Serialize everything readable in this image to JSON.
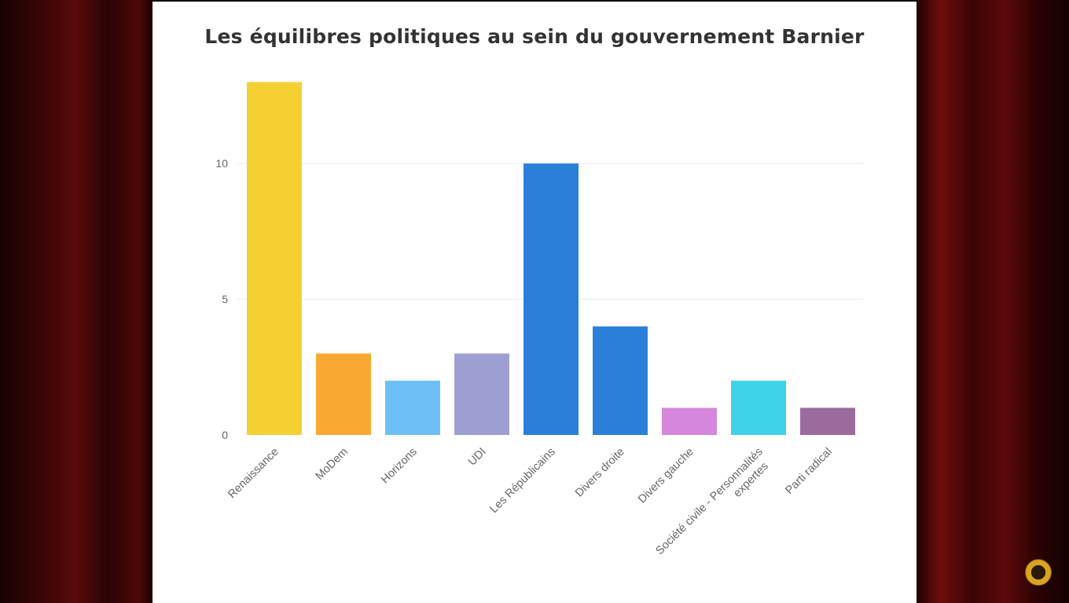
{
  "chart_data": {
    "type": "bar",
    "title": "Les équilibres politiques au sein du gouvernement Barnier",
    "xlabel": "",
    "ylabel": "",
    "categories": [
      "Renaissance",
      "MoDem",
      "Horizons",
      "UDI",
      "Les Républicains",
      "Divers droite",
      "Divers gauche",
      "Société civile - Personnalités expertes",
      "Parti radical"
    ],
    "category_lines": [
      [
        "Renaissance"
      ],
      [
        "MoDem"
      ],
      [
        "Horizons"
      ],
      [
        "UDI"
      ],
      [
        "Les Républicains"
      ],
      [
        "Divers droite"
      ],
      [
        "Divers gauche"
      ],
      [
        "Société civile - Personnalités",
        "expertes"
      ],
      [
        "Parti radical"
      ]
    ],
    "values": [
      13,
      3,
      2,
      3,
      10,
      4,
      1,
      2,
      1
    ],
    "colors": [
      "#f5d033",
      "#f8a932",
      "#6fbff7",
      "#9d9fd3",
      "#2a80d8",
      "#2a80d8",
      "#d487dc",
      "#3fd2e8",
      "#9a6b9c"
    ],
    "ylim": [
      0,
      13.1
    ],
    "yticks": [
      0,
      5,
      10
    ],
    "grid": true,
    "legend": "none"
  },
  "overlay": {
    "badge_icon": "channel-logo-icon"
  }
}
